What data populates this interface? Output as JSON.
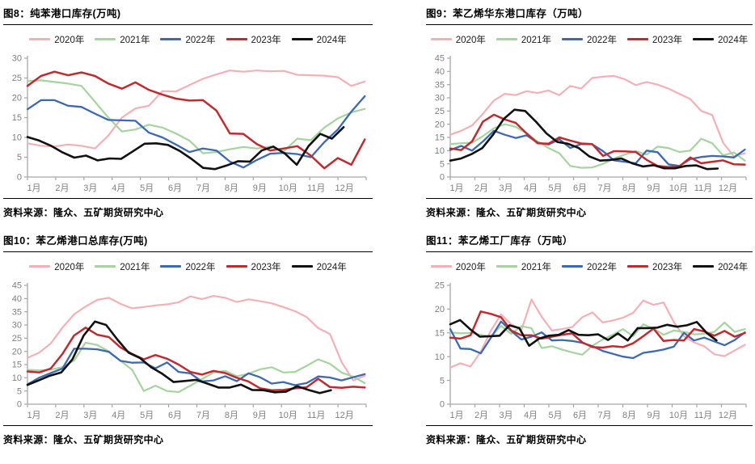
{
  "source_label": "资料来源：隆众、五矿期货研究中心",
  "axis": {
    "tick_color": "#a6a6a6",
    "label_color": "#7f7f7f"
  },
  "colors": {
    "y2020": "#f3b0b6",
    "y2021": "#a5d49f",
    "y2022": "#3c69b0",
    "y2023": "#c02b30",
    "y2024": "#111111"
  },
  "chart_data": [
    {
      "type": "line",
      "title": "图8：纯苯港口库存(万吨)",
      "ylim": [
        0,
        30
      ],
      "ytick_step": 5,
      "x_range": [
        1,
        13
      ],
      "x_ticks": [
        "1月",
        "2月",
        "3月",
        "4月",
        "5月",
        "6月",
        "7月",
        "8月",
        "9月",
        "10月",
        "11月",
        "12月"
      ],
      "grid": false,
      "legend_position": "top",
      "series": [
        {
          "name": "2020年",
          "color": "#f3b0b6",
          "x_start": 1,
          "x_end": 12.95,
          "values": [
            8.5,
            7.9,
            7.7,
            8.2,
            7.9,
            7.2,
            10.5,
            15.0,
            17.3,
            18.0,
            21.7,
            21.6,
            23.2,
            24.8,
            25.9,
            26.9,
            26.6,
            26.9,
            26.7,
            26.8,
            25.8,
            25.7,
            25.6,
            25.2,
            23.0,
            24.1
          ]
        },
        {
          "name": "2021年",
          "color": "#a5d49f",
          "x_start": 1,
          "x_end": 12.95,
          "values": [
            24.2,
            24.4,
            24.0,
            23.6,
            23.0,
            19.0,
            15.0,
            11.5,
            12.0,
            13.2,
            12.5,
            11.0,
            9.2,
            6.0,
            6.3,
            7.0,
            7.6,
            7.2,
            7.7,
            6.5,
            9.7,
            9.3,
            12.5,
            14.8,
            16.3,
            17.2
          ]
        },
        {
          "name": "2022年",
          "color": "#3c69b0",
          "x_start": 1,
          "x_end": 12.95,
          "values": [
            17.1,
            19.4,
            19.4,
            18.0,
            17.7,
            16.0,
            14.4,
            14.3,
            14.2,
            11.2,
            10.0,
            8.2,
            6.3,
            7.2,
            6.7,
            3.9,
            2.4,
            4.3,
            5.9,
            6.1,
            5.8,
            5.0,
            8.8,
            12.0,
            16.5,
            20.4
          ]
        },
        {
          "name": "2023年",
          "color": "#c02b30",
          "x_start": 1,
          "x_end": 12.95,
          "values": [
            23.0,
            25.5,
            26.6,
            25.7,
            26.4,
            25.5,
            23.6,
            22.3,
            23.9,
            22.0,
            20.8,
            19.8,
            19.3,
            19.4,
            16.8,
            11.0,
            10.9,
            8.3,
            6.7,
            7.2,
            7.8,
            5.4,
            2.2,
            4.8,
            3.1,
            9.5
          ]
        },
        {
          "name": "2024年",
          "color": "#111111",
          "x_start": 1,
          "x_end": 12.2,
          "values": [
            10.1,
            9.2,
            7.9,
            6.2,
            4.9,
            5.4,
            4.2,
            4.7,
            4.6,
            6.5,
            8.4,
            8.5,
            8.1,
            6.6,
            4.6,
            2.3,
            2.0,
            2.9,
            4.0,
            3.9,
            6.7,
            7.7,
            5.9,
            3.1,
            7.8,
            10.9,
            9.7,
            12.6
          ]
        }
      ]
    },
    {
      "type": "line",
      "title": "图9：苯乙烯华东港口库存（万吨）",
      "ylim": [
        0,
        45
      ],
      "ytick_step": 5,
      "x_range": [
        1,
        13
      ],
      "x_ticks": [
        "1月",
        "2月",
        "3月",
        "4月",
        "5月",
        "6月",
        "7月",
        "8月",
        "9月",
        "10月",
        "11月",
        "12月"
      ],
      "grid": false,
      "legend_position": "top",
      "series": [
        {
          "name": "2020年",
          "color": "#f3b0b6",
          "x_start": 1,
          "x_end": 12.95,
          "values": [
            16.0,
            17.5,
            19.5,
            24.0,
            29.0,
            31.5,
            31.0,
            32.5,
            31.8,
            32.8,
            31.0,
            34.5,
            33.5,
            37.5,
            38.0,
            38.3,
            37.0,
            34.8,
            36.0,
            35.0,
            33.5,
            31.5,
            29.5,
            25.0,
            23.5,
            13.0,
            7.8,
            9.0
          ]
        },
        {
          "name": "2021年",
          "color": "#a5d49f",
          "x_start": 1,
          "x_end": 12.95,
          "values": [
            12.5,
            12.8,
            13.0,
            15.5,
            18.5,
            20.0,
            19.0,
            16.5,
            13.5,
            11.0,
            9.0,
            4.2,
            3.5,
            3.6,
            5.0,
            7.0,
            8.5,
            9.8,
            8.5,
            11.5,
            11.0,
            9.5,
            10.0,
            14.5,
            12.8,
            8.2,
            9.3,
            6.2
          ]
        },
        {
          "name": "2022年",
          "color": "#3c69b0",
          "x_start": 1,
          "x_end": 12.95,
          "values": [
            10.2,
            11.8,
            10.0,
            13.5,
            17.5,
            16.0,
            14.8,
            15.8,
            13.0,
            12.3,
            14.3,
            11.0,
            12.5,
            12.4,
            9.8,
            6.3,
            5.8,
            5.2,
            10.0,
            9.4,
            4.8,
            4.2,
            6.8,
            7.6,
            8.0,
            7.8,
            7.4,
            10.4
          ]
        },
        {
          "name": "2023年",
          "color": "#c02b30",
          "x_start": 1,
          "x_end": 12.95,
          "values": [
            10.8,
            10.2,
            13.5,
            21.0,
            23.6,
            21.8,
            20.5,
            16.5,
            12.8,
            12.6,
            15.0,
            13.8,
            12.7,
            12.5,
            8.0,
            9.8,
            9.7,
            9.5,
            6.5,
            4.2,
            3.8,
            4.0,
            7.4,
            5.2,
            5.8,
            6.3,
            4.8,
            4.7
          ]
        },
        {
          "name": "2024年",
          "color": "#111111",
          "x_start": 1,
          "x_end": 11.85,
          "values": [
            6.2,
            7.0,
            8.7,
            11.0,
            16.0,
            22.0,
            25.5,
            25.0,
            21.0,
            16.5,
            13.3,
            12.6,
            11.0,
            7.8,
            6.2,
            6.5,
            7.0,
            5.2,
            4.0,
            4.5,
            3.3,
            3.3,
            4.2,
            4.4,
            3.0,
            3.2
          ]
        }
      ]
    },
    {
      "type": "line",
      "title": "图10：苯乙烯港口总库存(万吨)",
      "ylim": [
        0,
        45
      ],
      "ytick_step": 5,
      "x_range": [
        1,
        13
      ],
      "x_ticks": [
        "1月",
        "2月",
        "3月",
        "4月",
        "5月",
        "6月",
        "7月",
        "8月",
        "9月",
        "10月",
        "11月",
        "12月"
      ],
      "grid": false,
      "legend_position": "top",
      "series": [
        {
          "name": "2020年",
          "color": "#f3b0b6",
          "x_start": 1,
          "x_end": 12.95,
          "values": [
            17.5,
            19.5,
            23.0,
            29.0,
            34.0,
            37.0,
            39.5,
            40.3,
            38.0,
            36.3,
            36.8,
            37.4,
            37.8,
            38.6,
            40.8,
            39.8,
            41.0,
            40.3,
            38.7,
            39.7,
            39.0,
            38.2,
            36.8,
            35.2,
            33.0,
            28.8,
            26.6,
            16.0,
            9.0,
            10.8
          ]
        },
        {
          "name": "2021年",
          "color": "#a5d49f",
          "x_start": 1,
          "x_end": 12.95,
          "values": [
            13.0,
            12.8,
            13.1,
            14.0,
            16.5,
            23.3,
            22.4,
            20.0,
            16.4,
            13.0,
            5.0,
            7.0,
            5.0,
            4.6,
            7.0,
            9.5,
            12.0,
            12.6,
            10.6,
            11.5,
            13.2,
            14.0,
            12.0,
            12.2,
            14.5,
            17.0,
            15.3,
            12.0,
            10.4,
            8.0
          ]
        },
        {
          "name": "2022年",
          "color": "#3c69b0",
          "x_start": 1,
          "x_end": 12.95,
          "values": [
            7.5,
            10.0,
            11.8,
            13.5,
            21.0,
            21.0,
            20.8,
            19.8,
            16.4,
            15.7,
            15.8,
            13.6,
            15.8,
            12.2,
            11.7,
            8.6,
            9.0,
            10.6,
            8.7,
            11.7,
            10.2,
            7.8,
            8.4,
            7.2,
            8.0,
            10.5,
            10.1,
            9.0,
            10.2,
            11.4
          ]
        },
        {
          "name": "2023年",
          "color": "#c02b30",
          "x_start": 1,
          "x_end": 12.95,
          "values": [
            12.4,
            12.0,
            13.5,
            19.0,
            26.0,
            29.0,
            26.3,
            25.4,
            21.5,
            19.0,
            17.0,
            18.6,
            17.2,
            15.0,
            12.2,
            11.2,
            12.6,
            11.8,
            10.0,
            8.6,
            6.0,
            5.3,
            5.4,
            6.0,
            6.4,
            9.6,
            6.5,
            6.2,
            6.6,
            6.3
          ]
        },
        {
          "name": "2024年",
          "color": "#111111",
          "x_start": 1,
          "x_end": 11.75,
          "values": [
            7.3,
            9.0,
            10.8,
            12.0,
            17.0,
            26.0,
            31.3,
            30.0,
            24.5,
            19.5,
            17.5,
            14.0,
            11.5,
            8.4,
            8.8,
            9.2,
            7.8,
            6.3,
            6.3,
            7.4,
            5.4,
            5.3,
            4.5,
            4.7,
            6.8,
            5.4,
            4.2,
            5.3
          ]
        }
      ]
    },
    {
      "type": "line",
      "title": "图11：苯乙烯工厂库存（万吨）",
      "ylim": [
        0,
        25
      ],
      "ytick_step": 5,
      "x_range": [
        1,
        13
      ],
      "x_ticks": [
        "1月",
        "2月",
        "3月",
        "4月",
        "5月",
        "6月",
        "7月",
        "8月",
        "9月",
        "10月",
        "11月",
        "12月"
      ],
      "grid": false,
      "legend_position": "top",
      "series": [
        {
          "name": "2020年",
          "color": "#f3b0b6",
          "x_start": 1,
          "x_end": 12.95,
          "values": [
            7.7,
            8.6,
            7.9,
            11.0,
            15.5,
            18.9,
            16.8,
            15.6,
            22.0,
            18.4,
            15.5,
            15.8,
            16.2,
            18.3,
            19.3,
            17.2,
            17.6,
            18.2,
            19.2,
            21.8,
            20.9,
            21.4,
            17.3,
            14.3,
            13.0,
            12.2,
            10.5,
            10.1,
            11.3,
            12.5
          ]
        },
        {
          "name": "2021年",
          "color": "#a5d49f",
          "x_start": 1,
          "x_end": 12.95,
          "values": [
            15.1,
            14.9,
            15.0,
            14.6,
            14.2,
            16.5,
            14.8,
            16.4,
            16.0,
            11.8,
            12.2,
            11.5,
            10.9,
            10.4,
            12.3,
            13.6,
            14.6,
            15.8,
            14.3,
            16.8,
            15.9,
            14.6,
            15.5,
            15.2,
            14.7,
            14.8,
            15.2,
            17.2,
            15.2,
            15.8
          ]
        },
        {
          "name": "2022年",
          "color": "#3c69b0",
          "x_start": 1,
          "x_end": 12.95,
          "values": [
            15.8,
            11.7,
            11.6,
            10.7,
            14.0,
            17.4,
            15.4,
            13.6,
            14.2,
            15.1,
            13.4,
            13.5,
            13.3,
            12.9,
            12.2,
            11.2,
            10.6,
            10.0,
            9.7,
            10.8,
            11.1,
            11.5,
            12.1,
            15.0,
            13.4,
            14.0,
            13.2,
            12.4,
            13.5,
            15.1
          ]
        },
        {
          "name": "2023年",
          "color": "#c02b30",
          "x_start": 1,
          "x_end": 12.95,
          "values": [
            14.0,
            13.8,
            14.5,
            19.5,
            19.0,
            18.3,
            15.5,
            14.5,
            14.5,
            13.8,
            14.2,
            14.6,
            14.9,
            13.0,
            12.0,
            11.9,
            12.2,
            12.0,
            12.8,
            14.3,
            15.9,
            13.3,
            13.5,
            13.4,
            15.8,
            15.3,
            14.4,
            15.4,
            14.2,
            15.0
          ]
        },
        {
          "name": "2024年",
          "color": "#111111",
          "x_start": 1,
          "x_end": 11.8,
          "values": [
            16.8,
            17.7,
            15.8,
            14.2,
            14.3,
            14.4,
            16.6,
            16.0,
            12.3,
            13.8,
            14.4,
            14.6,
            15.6,
            14.6,
            14.5,
            14.7,
            13.5,
            14.9,
            13.4,
            16.0,
            16.0,
            16.1,
            16.7,
            16.3,
            16.6,
            17.3,
            15.0,
            13.4
          ]
        }
      ]
    }
  ]
}
